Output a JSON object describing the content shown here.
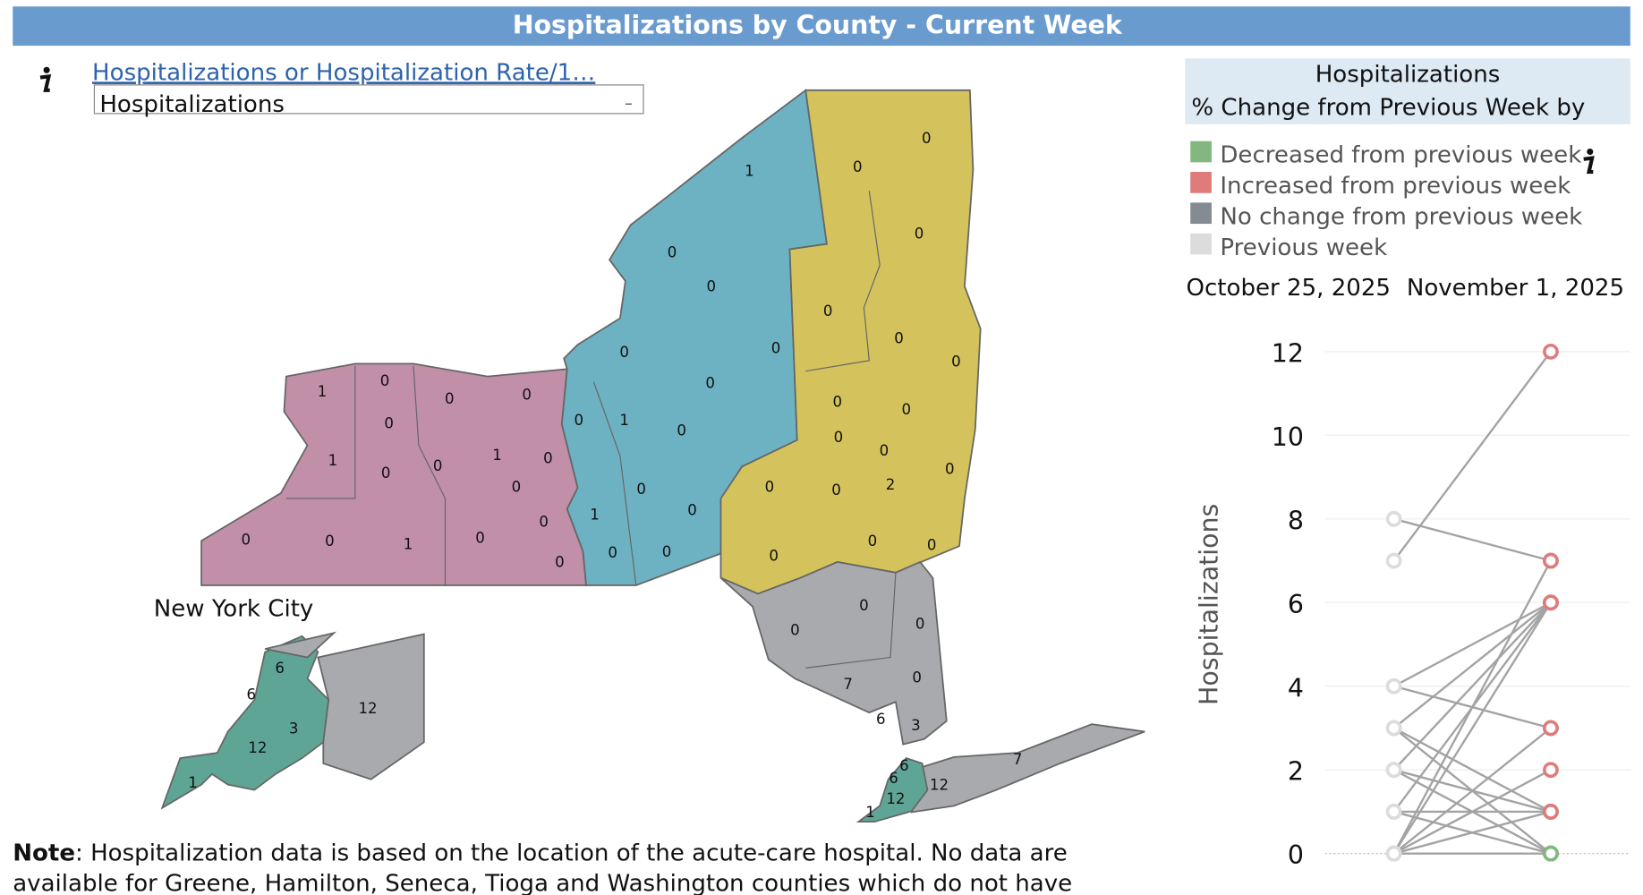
{
  "header": {
    "title": "Hospitalizations by County - Current Week"
  },
  "controls": {
    "metric_link": "Hospitalizations or Hospitalization Rate/1…",
    "selected": "Hospitalizations"
  },
  "map": {
    "inset_label": "New York City",
    "counties": [
      1,
      0,
      0,
      0,
      0,
      1,
      0,
      0,
      1,
      0,
      0,
      0,
      0,
      0,
      1,
      0,
      0,
      1,
      0,
      0,
      0,
      0,
      0,
      0,
      1,
      0,
      0,
      1,
      0,
      0,
      0,
      0,
      0,
      0,
      0,
      0,
      0,
      0,
      0,
      0,
      0,
      0,
      0,
      2,
      0,
      0,
      0,
      0,
      0,
      0,
      0,
      0,
      7,
      6,
      3,
      7,
      12,
      6,
      6,
      12,
      1,
      6,
      6,
      3,
      12,
      12,
      1
    ]
  },
  "legend": {
    "title": "Hospitalizations",
    "subtitle": "% Change from Previous Week by",
    "items": [
      {
        "label": "Decreased from previous week",
        "color": "#82b87f"
      },
      {
        "label": "Increased from previous week",
        "color": "#e07b7b"
      },
      {
        "label": "No change from previous week",
        "color": "#858b93"
      },
      {
        "label": "Previous week",
        "color": "#dcdcdc"
      }
    ]
  },
  "chart_data": {
    "type": "slope",
    "x": [
      "October 25, 2025",
      "November 1, 2025"
    ],
    "y_label": "Hospitalizations",
    "ylim": [
      0,
      12.8
    ],
    "yticks": [
      0,
      2,
      4,
      6,
      8,
      10,
      12
    ],
    "line_color": "#a3a3a3",
    "series": [
      {
        "values": [
          7,
          12
        ]
      },
      {
        "values": [
          8,
          7
        ]
      },
      {
        "values": [
          4,
          3
        ]
      },
      {
        "values": [
          4,
          6
        ]
      },
      {
        "values": [
          3,
          6
        ]
      },
      {
        "values": [
          3,
          1
        ]
      },
      {
        "values": [
          2,
          6
        ]
      },
      {
        "values": [
          2,
          1
        ]
      },
      {
        "values": [
          1,
          6
        ]
      },
      {
        "values": [
          1,
          0
        ]
      },
      {
        "values": [
          1,
          1
        ]
      },
      {
        "values": [
          0,
          7
        ]
      },
      {
        "values": [
          0,
          6
        ]
      },
      {
        "values": [
          0,
          3
        ]
      },
      {
        "values": [
          0,
          2
        ]
      },
      {
        "values": [
          0,
          1
        ]
      },
      {
        "values": [
          0,
          0
        ]
      },
      {
        "values": [
          3,
          0
        ]
      },
      {
        "values": [
          2,
          0
        ]
      }
    ]
  },
  "note": {
    "label": "Note",
    "lines": [
      ": Hospitalization data is based on the location of the acute-care hospital. No data are",
      "available for Greene, Hamilton, Seneca, Tioga and Washington counties which do not have"
    ]
  }
}
